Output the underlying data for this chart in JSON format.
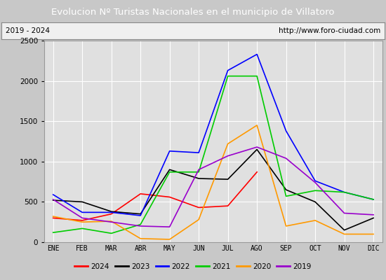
{
  "title": "Evolucion Nº Turistas Nacionales en el municipio de Villatoro",
  "subtitle_left": "2019 - 2024",
  "subtitle_right": "http://www.foro-ciudad.com",
  "months": [
    "ENE",
    "FEB",
    "MAR",
    "ABR",
    "MAY",
    "JUN",
    "JUL",
    "AGO",
    "SEP",
    "OCT",
    "NOV",
    "DIC"
  ],
  "title_bg_color": "#4d7cc7",
  "title_text_color": "#ffffff",
  "plot_bg_color": "#e0e0e0",
  "grid_color": "#ffffff",
  "series": {
    "2024": {
      "color": "#ff0000",
      "data": [
        300,
        270,
        350,
        600,
        560,
        430,
        450,
        870,
        null,
        null,
        null,
        null
      ]
    },
    "2023": {
      "color": "#000000",
      "data": [
        520,
        500,
        380,
        350,
        900,
        790,
        780,
        1150,
        650,
        500,
        150,
        300
      ]
    },
    "2022": {
      "color": "#0000ff",
      "data": [
        590,
        370,
        370,
        330,
        1130,
        1110,
        2130,
        2330,
        1380,
        760,
        620,
        530
      ]
    },
    "2021": {
      "color": "#00cc00",
      "data": [
        120,
        170,
        110,
        220,
        870,
        870,
        2060,
        2060,
        570,
        640,
        620,
        530
      ]
    },
    "2020": {
      "color": "#ff9900",
      "data": [
        320,
        250,
        260,
        45,
        35,
        280,
        1220,
        1450,
        200,
        270,
        100,
        100
      ]
    },
    "2019": {
      "color": "#9900cc",
      "data": [
        530,
        300,
        250,
        200,
        190,
        900,
        1070,
        1180,
        1040,
        740,
        360,
        340
      ]
    }
  },
  "ylim": [
    0,
    2500
  ],
  "yticks": [
    0,
    500,
    1000,
    1500,
    2000,
    2500
  ],
  "legend_order": [
    "2024",
    "2023",
    "2022",
    "2021",
    "2020",
    "2019"
  ],
  "outer_bg_color": "#c8c8c8",
  "border_color": "#4d7cc7"
}
